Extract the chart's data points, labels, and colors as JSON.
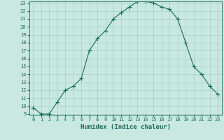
{
  "title": "",
  "xlabel": "Humidex (Indice chaleur)",
  "ylabel": "",
  "x": [
    0,
    1,
    2,
    3,
    4,
    5,
    6,
    7,
    8,
    9,
    10,
    11,
    12,
    13,
    14,
    15,
    16,
    17,
    18,
    19,
    20,
    21,
    22,
    23
  ],
  "y": [
    9.8,
    9.0,
    9.0,
    10.5,
    12.0,
    12.5,
    13.5,
    17.0,
    18.5,
    19.5,
    21.0,
    21.8,
    22.5,
    23.2,
    23.2,
    23.0,
    22.5,
    22.2,
    21.0,
    18.0,
    15.0,
    14.0,
    12.5,
    11.5
  ],
  "line_color": "#1a6b5a",
  "marker": "+",
  "marker_size": 4,
  "bg_color": "#c8e8e0",
  "grid_color": "#a0c8c0",
  "tick_label_color": "#1a6b5a",
  "xlabel_color": "#1a6b5a",
  "ylim": [
    9,
    23
  ],
  "xlim": [
    -0.5,
    23.5
  ],
  "yticks": [
    9,
    10,
    11,
    12,
    13,
    14,
    15,
    16,
    17,
    18,
    19,
    20,
    21,
    22,
    23
  ],
  "xticks": [
    0,
    1,
    2,
    3,
    4,
    5,
    6,
    7,
    8,
    9,
    10,
    11,
    12,
    13,
    14,
    15,
    16,
    17,
    18,
    19,
    20,
    21,
    22,
    23
  ],
  "tick_fontsize": 5.0,
  "xlabel_fontsize": 6.5,
  "linewidth": 0.8,
  "markeredgewidth": 0.8
}
